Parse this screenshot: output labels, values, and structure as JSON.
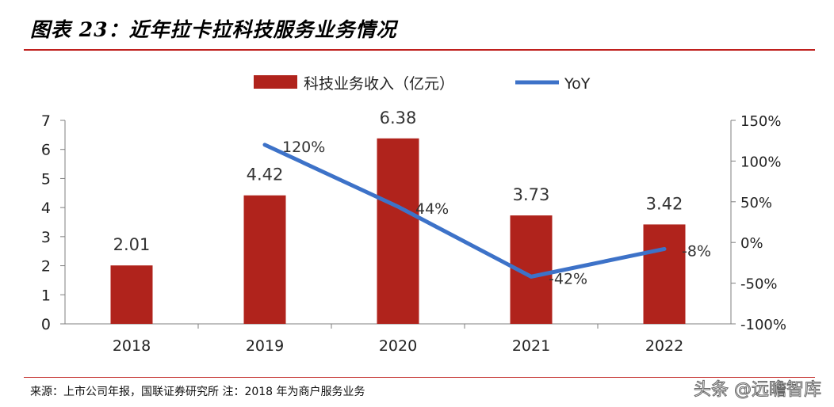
{
  "title": "图表 23：近年拉卡拉科技服务业务情况",
  "source": "来源：上市公司年报，国联证券研究所  注：2018 年为商户服务业务",
  "watermark": "头条 @远瞻智库",
  "colors": {
    "bar": "#b0231c",
    "line": "#3d72c8",
    "accent_rule": "#c0201e"
  },
  "chart_data": {
    "type": "bar",
    "categories": [
      "2018",
      "2019",
      "2020",
      "2021",
      "2022"
    ],
    "series": [
      {
        "name": "科技业务收入（亿元）",
        "type": "bar",
        "axis": "left",
        "values": [
          2.01,
          4.42,
          6.38,
          3.73,
          3.42
        ],
        "labels": [
          "2.01",
          "4.42",
          "6.38",
          "3.73",
          "3.42"
        ]
      },
      {
        "name": "YoY",
        "type": "line",
        "axis": "right",
        "values": [
          null,
          120,
          44,
          -42,
          -8
        ],
        "labels": [
          "",
          "120%",
          "44%",
          "-42%",
          "-8%"
        ]
      }
    ],
    "y_left": {
      "min": 0,
      "max": 7,
      "ticks": [
        0,
        1,
        2,
        3,
        4,
        5,
        6,
        7
      ],
      "tick_labels": [
        "0",
        "1",
        "2",
        "3",
        "4",
        "5",
        "6",
        "7"
      ]
    },
    "y_right": {
      "min": -100,
      "max": 150,
      "ticks": [
        -100,
        -50,
        0,
        50,
        100,
        150
      ],
      "tick_labels": [
        "-100%",
        "-50%",
        "0%",
        "50%",
        "100%",
        "150%"
      ]
    },
    "grid": false,
    "legend_position": "top"
  }
}
